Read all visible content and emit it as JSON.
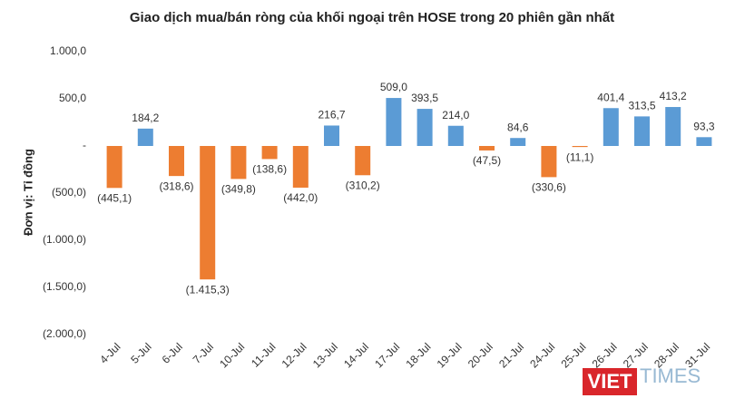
{
  "chart_data": {
    "type": "bar",
    "title": "Giao dịch mua/bán ròng của khối ngoại trên HOSE trong 20 phiên gần nhất",
    "y_label": "Đơn vị: Tỉ đồng",
    "categories": [
      "4-Jul",
      "5-Jul",
      "6-Jul",
      "7-Jul",
      "10-Jul",
      "11-Jul",
      "12-Jul",
      "13-Jul",
      "14-Jul",
      "17-Jul",
      "18-Jul",
      "19-Jul",
      "20-Jul",
      "21-Jul",
      "24-Jul",
      "25-Jul",
      "26-Jul",
      "27-Jul",
      "28-Jul",
      "31-Jul"
    ],
    "values": [
      -445.1,
      184.2,
      -318.6,
      -1415.3,
      -349.8,
      -138.6,
      -442.0,
      216.7,
      -310.2,
      509.0,
      393.5,
      214.0,
      -47.5,
      84.6,
      -330.6,
      -11.1,
      401.4,
      313.5,
      413.2,
      93.3
    ],
    "value_labels": [
      "(445,1)",
      "184,2",
      "(318,6)",
      "(1.415,3)",
      "(349,8)",
      "(138,6)",
      "(442,0)",
      "216,7",
      "(310,2)",
      "509,0",
      "393,5",
      "214,0",
      "(47,5)",
      "84,6",
      "(330,6)",
      "(11,1)",
      "401,4",
      "313,5",
      "413,2",
      "93,3"
    ],
    "positive_color": "#5b9bd5",
    "negative_color": "#ed7d31",
    "ylim": [
      -2000,
      1000
    ],
    "yticks": [
      {
        "value": -2000,
        "label": "(2.000,0)"
      },
      {
        "value": -1500,
        "label": "(1.500,0)"
      },
      {
        "value": -1000,
        "label": "(1.000,0)"
      },
      {
        "value": -500,
        "label": "(500,0)"
      },
      {
        "value": 0,
        "label": "-"
      },
      {
        "value": 500,
        "label": "500,0"
      },
      {
        "value": 1000,
        "label": "1.000,0"
      }
    ],
    "grid": false,
    "watermark": {
      "left": "VIET",
      "right": "TIMES"
    }
  }
}
